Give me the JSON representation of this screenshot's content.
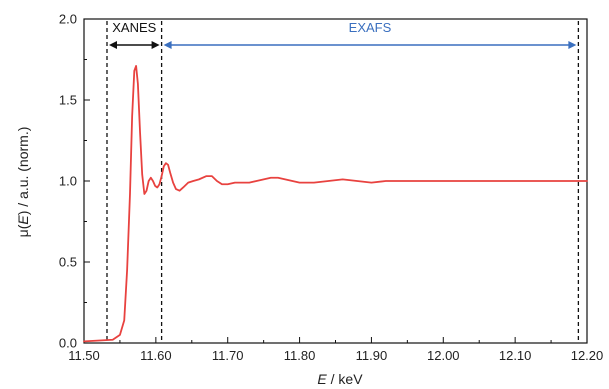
{
  "chart_data": {
    "type": "line",
    "xlabel_prefix": "E",
    "xlabel_suffix": " / keV",
    "ylabel_prefix": "μ(",
    "ylabel_italic": "E",
    "ylabel_suffix": ") / a.u. (norm.)",
    "xlim": [
      11.5,
      12.2
    ],
    "ylim": [
      0.0,
      2.0
    ],
    "xticks": [
      11.5,
      11.6,
      11.7,
      11.8,
      11.9,
      12.0,
      12.1,
      12.2
    ],
    "xtick_labels": [
      "11.50",
      "11.60",
      "11.70",
      "11.80",
      "11.90",
      "12.00",
      "12.10",
      "12.20"
    ],
    "yticks": [
      0.0,
      0.5,
      1.0,
      1.5,
      2.0
    ],
    "ytick_labels": [
      "0.0",
      "0.5",
      "1.0",
      "1.5",
      "2.0"
    ],
    "grid": false,
    "series": [
      {
        "color": "#e8423f",
        "x": [
          11.5,
          11.54,
          11.55,
          11.556,
          11.56,
          11.564,
          11.567,
          11.57,
          11.5725,
          11.575,
          11.578,
          11.581,
          11.584,
          11.587,
          11.59,
          11.593,
          11.596,
          11.599,
          11.602,
          11.605,
          11.608,
          11.611,
          11.614,
          11.617,
          11.62,
          11.624,
          11.628,
          11.633,
          11.638,
          11.645,
          11.652,
          11.66,
          11.67,
          11.678,
          11.685,
          11.692,
          11.7,
          11.71,
          11.72,
          11.73,
          11.74,
          11.75,
          11.76,
          11.77,
          11.78,
          11.79,
          11.8,
          11.82,
          11.84,
          11.86,
          11.88,
          11.9,
          11.92,
          11.95,
          12.0,
          12.05,
          12.1,
          12.15,
          12.2
        ],
        "y": [
          0.01,
          0.02,
          0.05,
          0.14,
          0.45,
          0.92,
          1.4,
          1.68,
          1.71,
          1.6,
          1.3,
          1.04,
          0.92,
          0.94,
          1.0,
          1.02,
          1.0,
          0.97,
          0.96,
          0.98,
          1.03,
          1.09,
          1.11,
          1.1,
          1.05,
          0.99,
          0.95,
          0.94,
          0.96,
          0.99,
          1.0,
          1.01,
          1.03,
          1.03,
          1.0,
          0.98,
          0.98,
          0.99,
          0.99,
          0.99,
          1.0,
          1.01,
          1.02,
          1.02,
          1.01,
          1.0,
          0.99,
          0.99,
          1.0,
          1.01,
          1.0,
          0.99,
          1.0,
          1.0,
          1.0,
          1.0,
          1.0,
          1.0,
          1.0
        ]
      }
    ],
    "regions": [
      {
        "label": "XANES",
        "color": "#111111",
        "x_start": 11.532,
        "x_end": 11.608
      },
      {
        "label": "EXAFS",
        "color": "#3a6fbf",
        "x_start": 11.608,
        "x_end": 12.188
      }
    ],
    "dashed_lines_x": [
      11.532,
      11.608,
      12.188
    ]
  }
}
